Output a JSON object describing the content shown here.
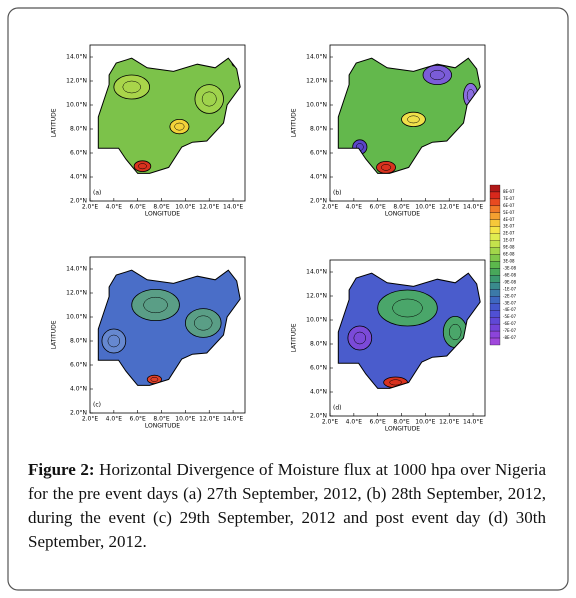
{
  "axes": {
    "xticks": [
      "2.0°E",
      "4.0°E",
      "6.0°E",
      "8.0°E",
      "10.0°E",
      "12.0°E",
      "14.0°E"
    ],
    "yticks": [
      "2.0°N",
      "4.0°N",
      "6.0°N",
      "8.0°N",
      "10.0°N",
      "12.0°N",
      "14.0°N"
    ],
    "xlabel": "LONGITUDE",
    "ylabel": "LATITUDE"
  },
  "panels": [
    {
      "label": "(a)"
    },
    {
      "label": "(b)"
    },
    {
      "label": "(c)"
    },
    {
      "label": "(d)"
    }
  ],
  "colorbar": {
    "labels": [
      "8E-07",
      "7E-07",
      "6E-07",
      "5E-07",
      "4E-07",
      "3E-07",
      "2E-07",
      "1E-07",
      "9E-08",
      "6E-08",
      "3E-08",
      "-3E-08",
      "-6E-08",
      "-9E-08",
      "-1E-07",
      "-2E-07",
      "-3E-07",
      "-4E-07",
      "-5E-07",
      "-6E-07",
      "-7E-07",
      "-8E-07"
    ]
  },
  "caption": {
    "label": "Figure 2:",
    "text": "Horizontal Divergence of Moisture flux at 1000 hpa over Nigeria for the pre event days (a) 27th September, 2012, (b) 28th September, 2012, during the event (c) 29th September, 2012 and post event day (d) 30th September, 2012."
  }
}
